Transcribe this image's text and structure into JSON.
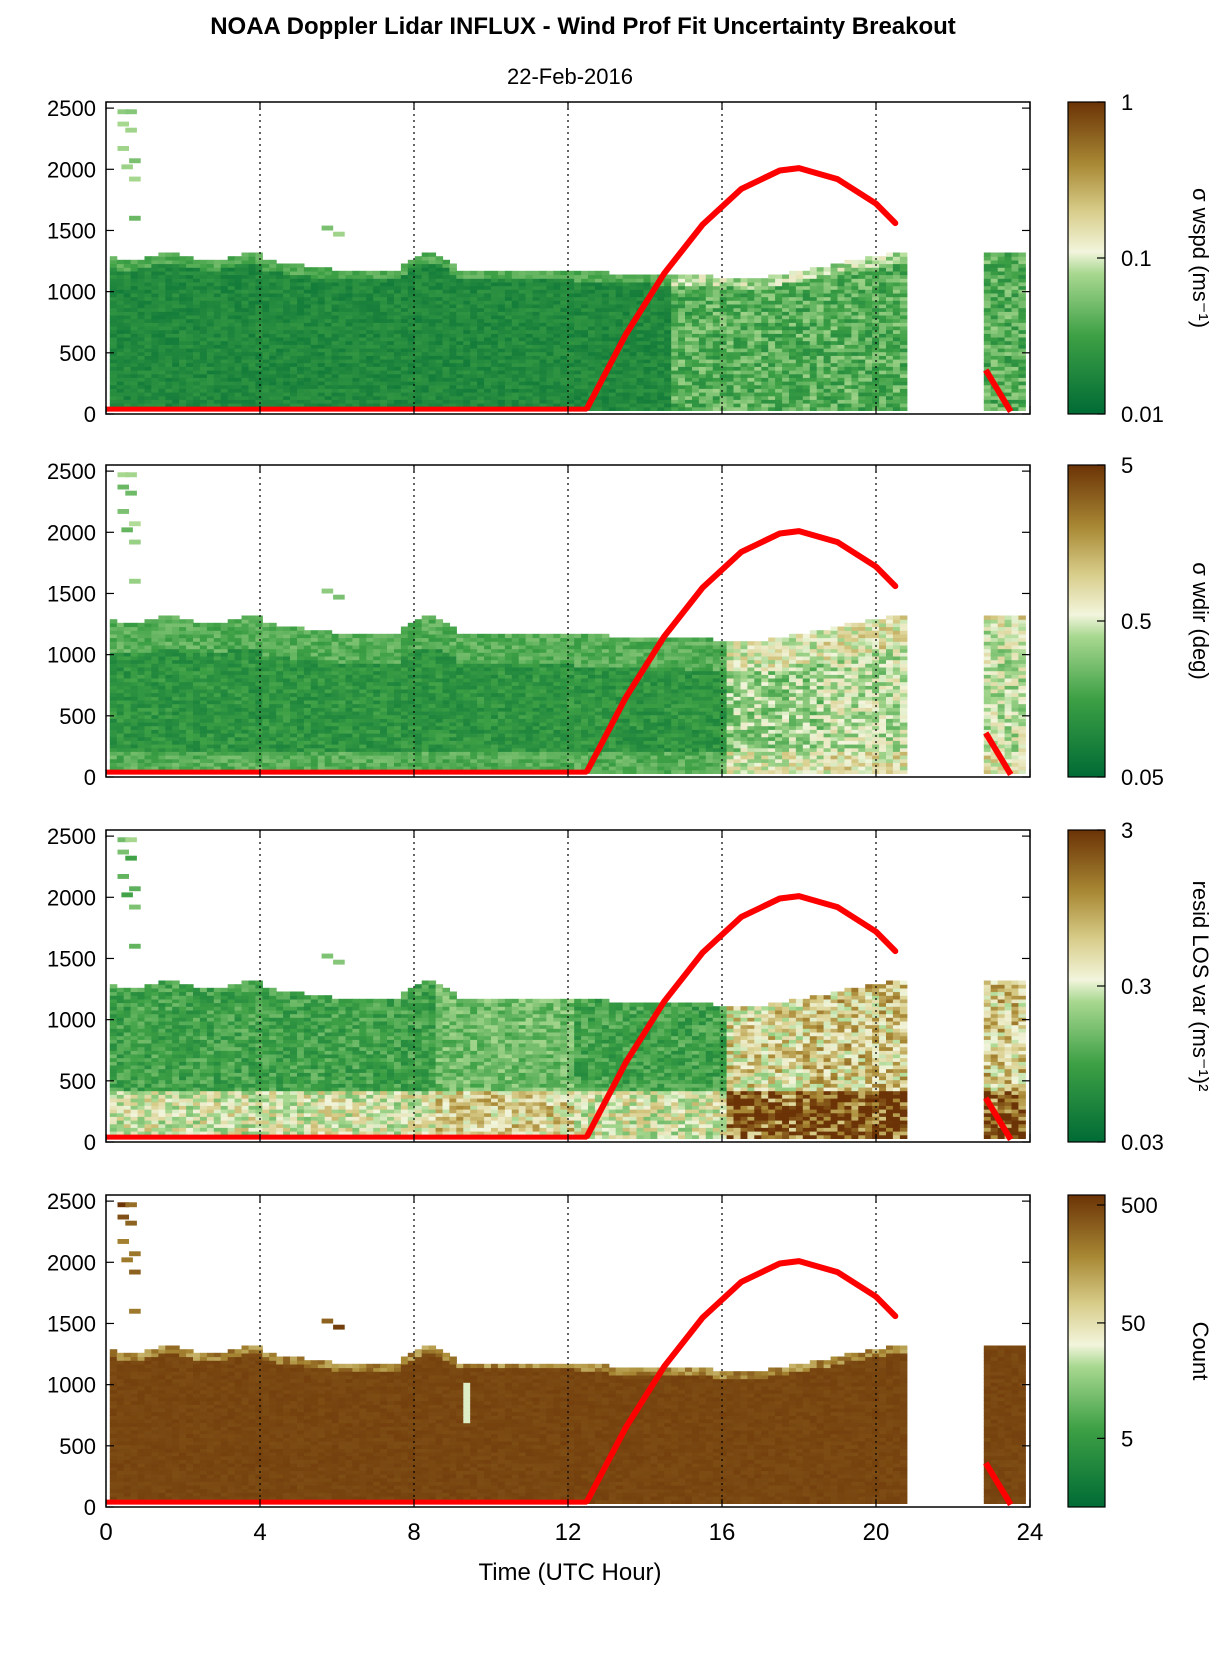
{
  "title": "NOAA Doppler Lidar INFLUX - Wind Prof Fit Uncertainty Breakout",
  "subtitle": "22-Feb-2016",
  "xlabel": "Time (UTC Hour)",
  "chart_data": [
    {
      "type": "heatmap",
      "xlim": [
        0,
        24
      ],
      "ylim": [
        0,
        2550
      ],
      "x_ticks": [
        "0",
        "4",
        "8",
        "12",
        "16",
        "20",
        "24"
      ],
      "y_ticks": [
        "0",
        "500",
        "1000",
        "1500",
        "2000",
        "2500"
      ],
      "colorbar": {
        "label": "σ wspd (ms⁻¹)",
        "ticks": [
          "1",
          "0.1",
          "0.01"
        ],
        "scale": "log"
      },
      "field": "wspd",
      "series": [
        {
          "values": [
            [
              12.5,
              50
            ],
            [
              13.5,
              650
            ],
            [
              14.5,
              1150
            ],
            [
              15.5,
              1550
            ],
            [
              16.5,
              1840
            ],
            [
              17.5,
              1990
            ],
            [
              18,
              2010
            ],
            [
              19,
              1920
            ],
            [
              20,
              1720
            ],
            [
              20.5,
              1560
            ]
          ]
        }
      ]
    },
    {
      "type": "heatmap",
      "xlim": [
        0,
        24
      ],
      "ylim": [
        0,
        2550
      ],
      "x_ticks": [
        "0",
        "4",
        "8",
        "12",
        "16",
        "20",
        "24"
      ],
      "y_ticks": [
        "0",
        "500",
        "1000",
        "1500",
        "2000",
        "2500"
      ],
      "colorbar": {
        "label": "σ wdir (deg)",
        "ticks": [
          "5",
          "0.5",
          "0.05"
        ],
        "scale": "log"
      },
      "field": "wdir",
      "series": [
        {
          "values": [
            [
              12.5,
              50
            ],
            [
              13.5,
              650
            ],
            [
              14.5,
              1150
            ],
            [
              15.5,
              1550
            ],
            [
              16.5,
              1840
            ],
            [
              17.5,
              1990
            ],
            [
              18,
              2010
            ],
            [
              19,
              1920
            ],
            [
              20,
              1720
            ],
            [
              20.5,
              1560
            ]
          ]
        }
      ]
    },
    {
      "type": "heatmap",
      "xlim": [
        0,
        24
      ],
      "ylim": [
        0,
        2550
      ],
      "x_ticks": [
        "0",
        "4",
        "8",
        "12",
        "16",
        "20",
        "24"
      ],
      "y_ticks": [
        "0",
        "500",
        "1000",
        "1500",
        "2000",
        "2500"
      ],
      "colorbar": {
        "label": "resid LOS var (ms⁻¹)²",
        "ticks": [
          "3",
          "0.3",
          "0.03"
        ],
        "scale": "log"
      },
      "field": "resid",
      "series": [
        {
          "values": [
            [
              12.5,
              50
            ],
            [
              13.5,
              650
            ],
            [
              14.5,
              1150
            ],
            [
              15.5,
              1550
            ],
            [
              16.5,
              1840
            ],
            [
              17.5,
              1990
            ],
            [
              18,
              2010
            ],
            [
              19,
              1920
            ],
            [
              20,
              1720
            ],
            [
              20.5,
              1560
            ]
          ]
        }
      ]
    },
    {
      "type": "heatmap",
      "xlim": [
        0,
        24
      ],
      "ylim": [
        0,
        2550
      ],
      "x_ticks": [
        "0",
        "4",
        "8",
        "12",
        "16",
        "20",
        "24"
      ],
      "y_ticks": [
        "0",
        "500",
        "1000",
        "1500",
        "2000",
        "2500"
      ],
      "colorbar": {
        "label": "Count",
        "ticks": [
          "500",
          "50",
          "5"
        ],
        "scale": "log"
      },
      "field": "count",
      "series": [
        {
          "values": [
            [
              12.5,
              50
            ],
            [
              13.5,
              650
            ],
            [
              14.5,
              1150
            ],
            [
              15.5,
              1550
            ],
            [
              16.5,
              1840
            ],
            [
              17.5,
              1990
            ],
            [
              18,
              2010
            ],
            [
              19,
              1920
            ],
            [
              20,
              1720
            ],
            [
              20.5,
              1560
            ]
          ]
        }
      ]
    }
  ],
  "colors": {
    "red_line": "#ff0000",
    "dark_green": "#006b35",
    "light": "#f5f5dc",
    "dark_brown": "#6b3306"
  }
}
